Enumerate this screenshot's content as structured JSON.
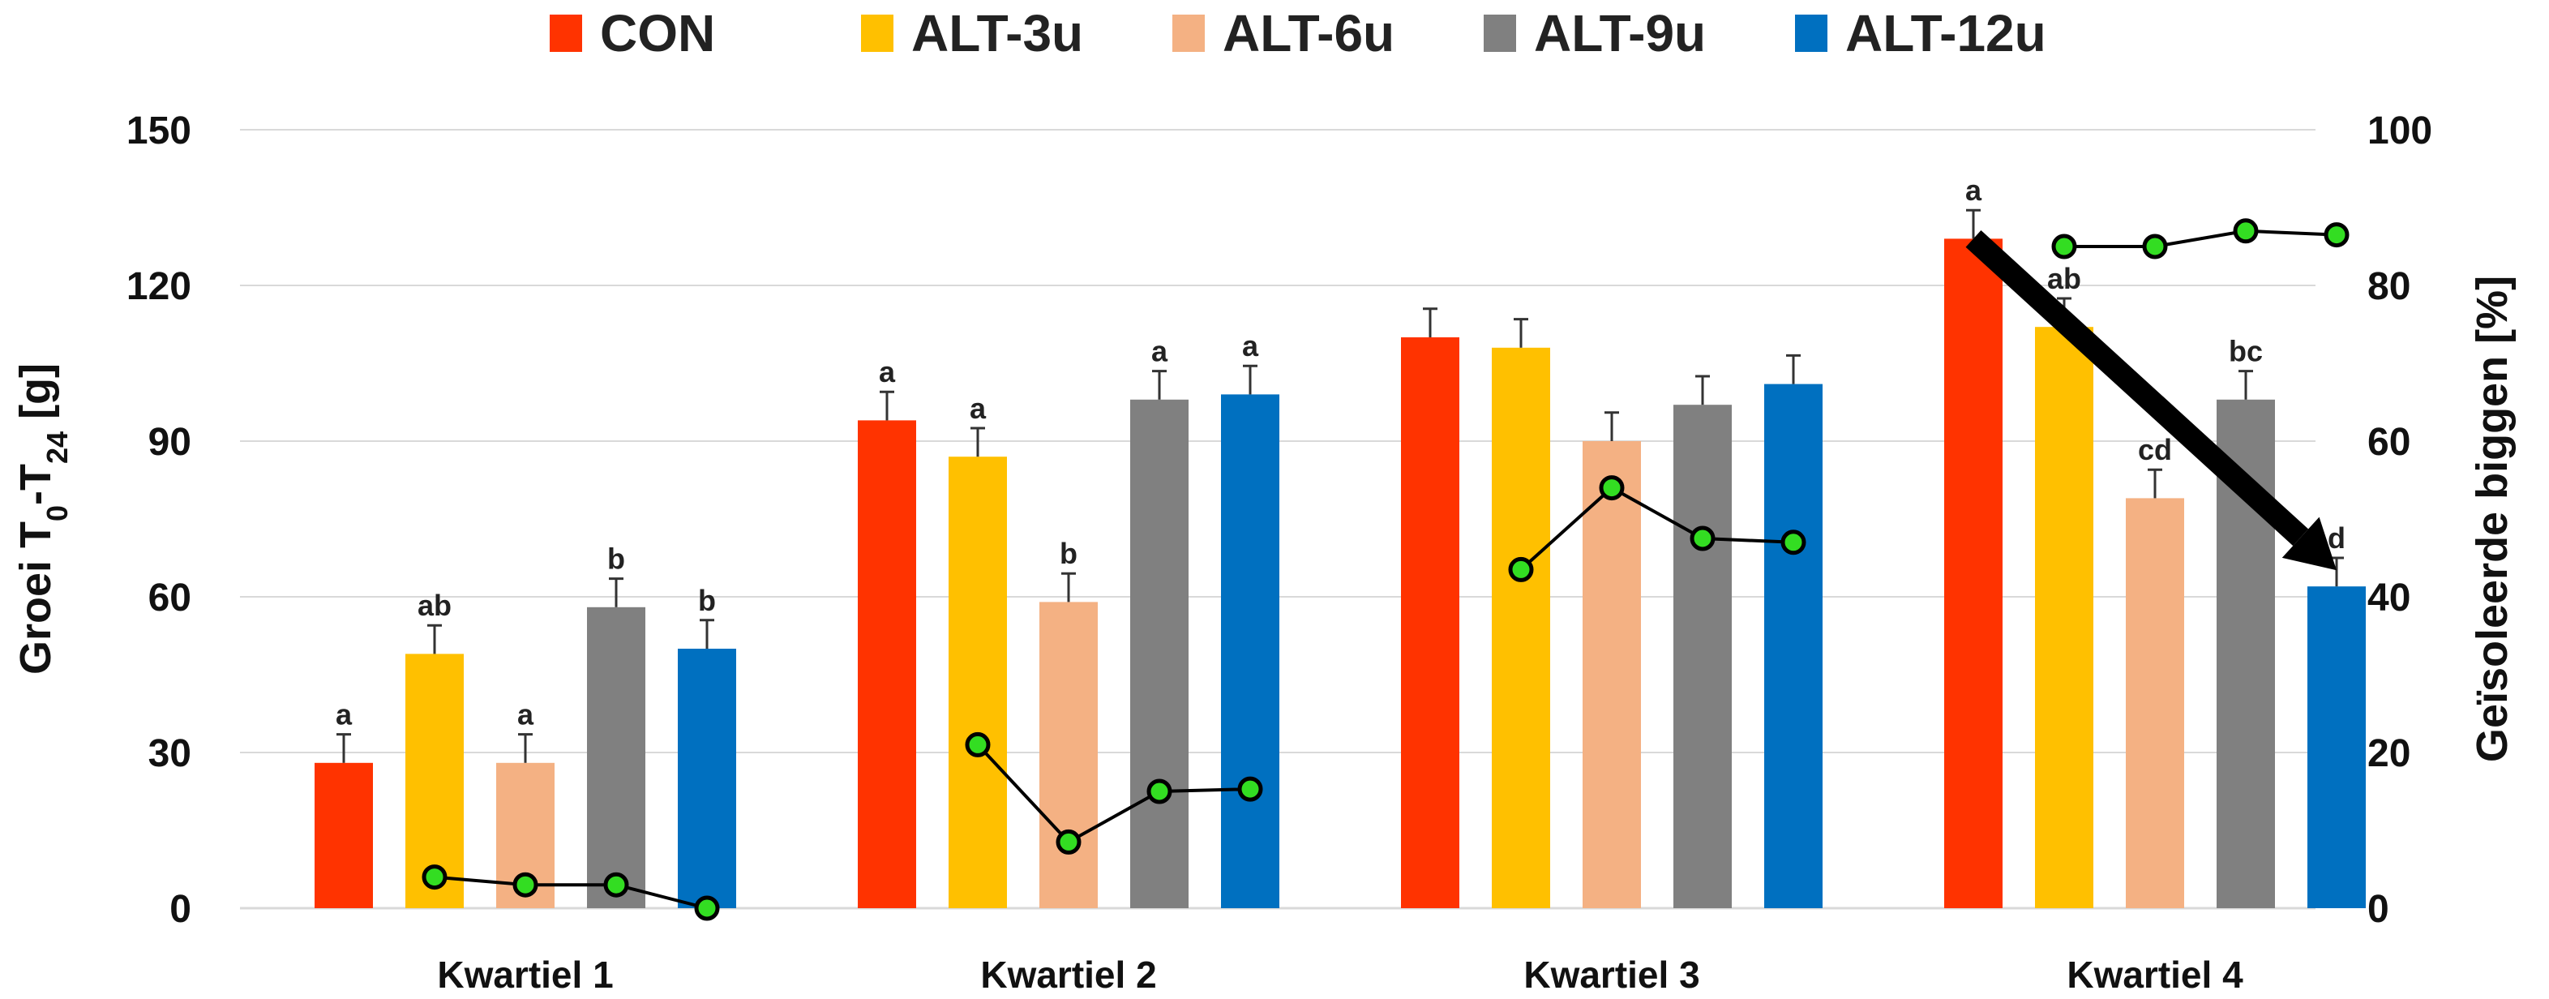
{
  "chart_data": {
    "type": "bar",
    "categories": [
      "Kwartiel 1",
      "Kwartiel 2",
      "Kwartiel 3",
      "Kwartiel 4"
    ],
    "series": [
      {
        "name": "CON",
        "color": "#FF3300",
        "values": [
          28,
          94,
          110,
          129
        ],
        "errors": [
          5.5,
          5.5,
          5.5,
          5.5
        ],
        "labels": [
          "a",
          "a",
          "",
          "a"
        ]
      },
      {
        "name": "ALT-3u",
        "color": "#FFC000",
        "values": [
          49,
          87,
          108,
          112
        ],
        "errors": [
          5.5,
          5.5,
          5.5,
          5.5
        ],
        "labels": [
          "ab",
          "a",
          "",
          "ab"
        ]
      },
      {
        "name": "ALT-6u",
        "color": "#F4B183",
        "values": [
          28,
          59,
          90,
          79
        ],
        "errors": [
          5.5,
          5.5,
          5.5,
          5.5
        ],
        "labels": [
          "a",
          "b",
          "",
          "cd"
        ]
      },
      {
        "name": "ALT-9u",
        "color": "#808080",
        "values": [
          58,
          98,
          97,
          98
        ],
        "errors": [
          5.5,
          5.5,
          5.5,
          5.5
        ],
        "labels": [
          "b",
          "a",
          "",
          "bc"
        ]
      },
      {
        "name": "ALT-12u",
        "color": "#0070C0",
        "values": [
          50,
          99,
          101,
          62
        ],
        "errors": [
          5.5,
          5.5,
          5.5,
          5.5
        ],
        "labels": [
          "b",
          "a",
          "",
          "d"
        ]
      }
    ],
    "line_series": {
      "axis": "right",
      "color": "#000000",
      "marker_color": "#33DD22",
      "groups": [
        [
          {
            "series": 1,
            "value": 4
          },
          {
            "series": 2,
            "value": 3
          },
          {
            "series": 3,
            "value": 3
          },
          {
            "series": 4,
            "value": 0
          }
        ],
        [
          {
            "series": 1,
            "value": 21
          },
          {
            "series": 2,
            "value": 8.5
          },
          {
            "series": 3,
            "value": 15
          },
          {
            "series": 4,
            "value": 15.3
          }
        ],
        [
          {
            "series": 1,
            "value": 43.5
          },
          {
            "series": 2,
            "value": 54
          },
          {
            "series": 3,
            "value": 47.5
          },
          {
            "series": 4,
            "value": 47
          }
        ],
        [
          {
            "series": 1,
            "value": 85
          },
          {
            "series": 2,
            "value": 85
          },
          {
            "series": 3,
            "value": 87
          },
          {
            "series": 4,
            "value": 86.5
          }
        ]
      ]
    },
    "arrow": {
      "category": 3,
      "from_series": 0,
      "to_series": 4,
      "from_value": 129,
      "to_value": 62
    },
    "ylabel": "Groei T0-T24 [g]",
    "ylabel_parts": [
      {
        "text": "Groei T",
        "sub": false
      },
      {
        "text": "0",
        "sub": true
      },
      {
        "text": "-T",
        "sub": false
      },
      {
        "text": "24",
        "sub": true
      },
      {
        "text": " [g]",
        "sub": false
      }
    ],
    "y2label": "Geïsoleerde biggen [%]",
    "ylim": [
      0,
      150
    ],
    "yticks": [
      0,
      30,
      60,
      90,
      120,
      150
    ],
    "y2lim": [
      0,
      100
    ],
    "y2ticks": [
      0,
      20,
      40,
      60,
      80,
      100
    ],
    "grid": true,
    "legend_position": "top-center"
  }
}
